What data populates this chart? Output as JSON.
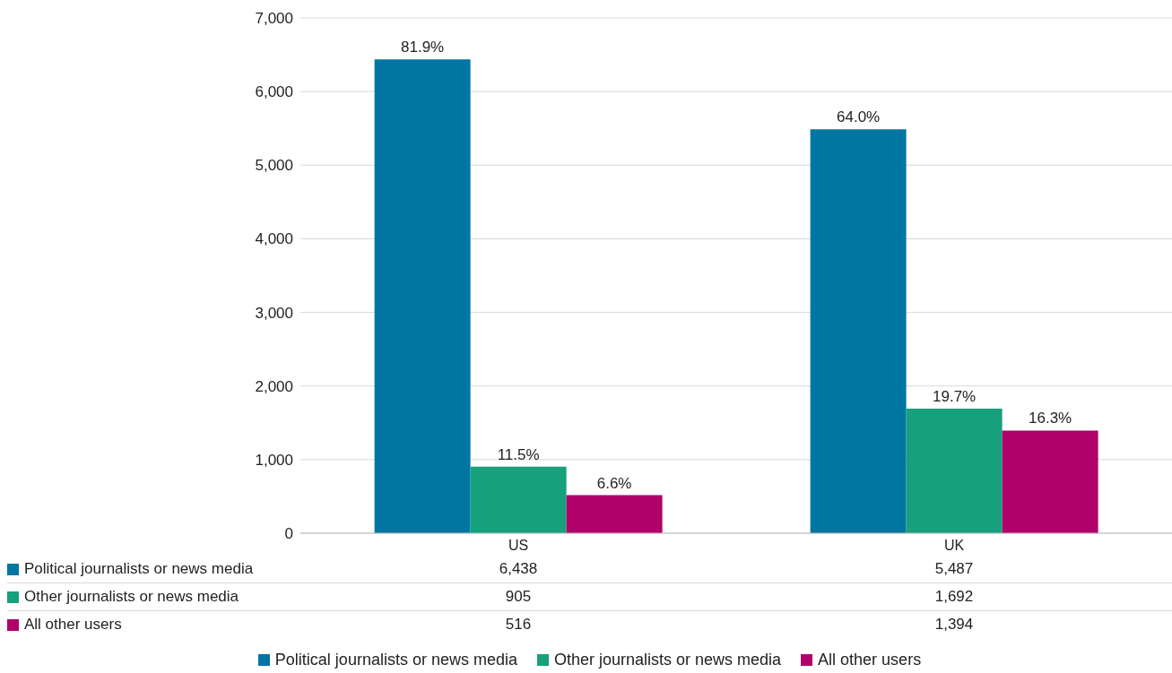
{
  "chart_data": {
    "type": "bar",
    "categories": [
      "US",
      "UK"
    ],
    "series": [
      {
        "name": "Political journalists or news media",
        "color": "#0077a3",
        "values": [
          6438,
          5487
        ],
        "value_labels": [
          "6,438",
          "5,487"
        ]
      },
      {
        "name": "Other journalists or news media",
        "color": "#16a07c",
        "values": [
          905,
          1692
        ],
        "value_labels": [
          "905",
          "1,692"
        ]
      },
      {
        "name": "All other users",
        "color": "#b0006a",
        "values": [
          516,
          1394
        ],
        "value_labels": [
          "516",
          "1,394"
        ]
      }
    ],
    "annotations": [
      "81.9%",
      "64.0%",
      "11.5%",
      "19.7%",
      "6.6%",
      "16.3%"
    ],
    "ylim": [
      0,
      7000
    ],
    "yticks": [
      {
        "value": 0,
        "label": "0"
      },
      {
        "value": 1000,
        "label": "1,000"
      },
      {
        "value": 2000,
        "label": "2,000"
      },
      {
        "value": 3000,
        "label": "3,000"
      },
      {
        "value": 4000,
        "label": "4,000"
      },
      {
        "value": 5000,
        "label": "5,000"
      },
      {
        "value": 6000,
        "label": "6,000"
      },
      {
        "value": 7000,
        "label": "7,000"
      }
    ],
    "grid": "y",
    "legend": "bottom"
  }
}
